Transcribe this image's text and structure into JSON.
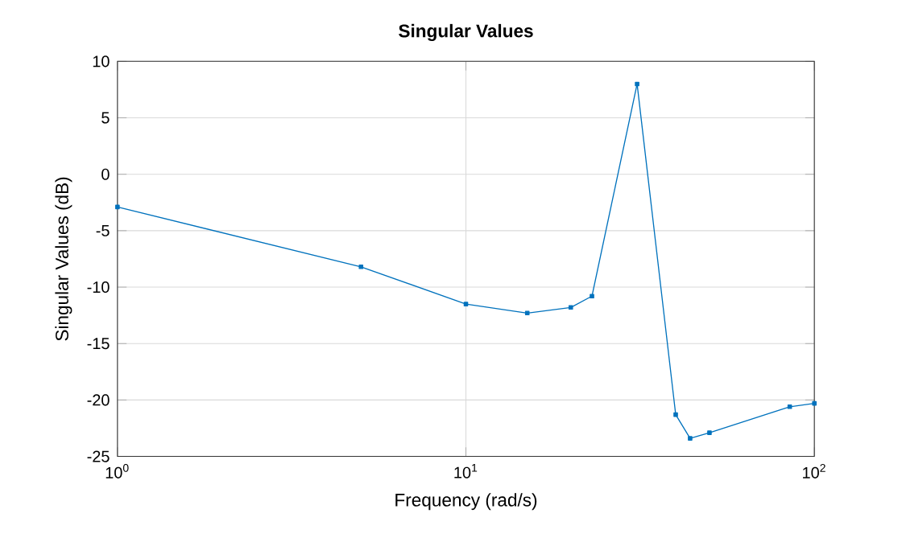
{
  "chart_data": {
    "type": "line",
    "title": "Singular Values",
    "xlabel": "Frequency (rad/s)",
    "ylabel": "Singular Values (dB)",
    "log": "x",
    "grid": true,
    "marker": "square",
    "line_style": "solid",
    "x": [
      1,
      5,
      10,
      15,
      20,
      23,
      31,
      40,
      44,
      50,
      85,
      100
    ],
    "series": [
      {
        "color": "#0072bd",
        "values": [
          -2.9,
          -8.2,
          -11.5,
          -12.3,
          -11.8,
          -10.8,
          8,
          -21.3,
          -23.4,
          -22.9,
          -20.6,
          -20.3
        ]
      }
    ],
    "xlim": [
      1,
      100
    ],
    "ylim": [
      -25,
      10
    ],
    "xticks": [
      {
        "value": 1,
        "label": "10$^{0}$"
      },
      {
        "value": 10,
        "label": "10$^{1}$"
      },
      {
        "value": 100,
        "label": "10$^{2}$"
      }
    ],
    "yticks": [
      -25,
      -20,
      -15,
      -10,
      -5,
      0,
      5,
      10
    ]
  }
}
